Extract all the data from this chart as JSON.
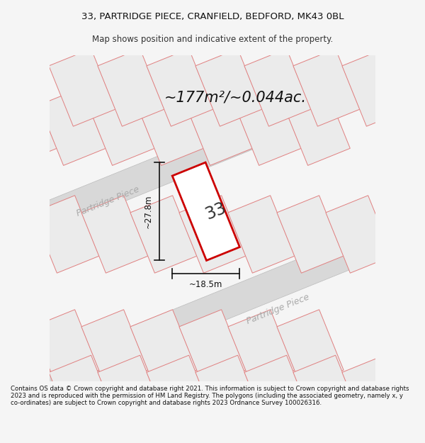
{
  "title_line1": "33, PARTRIDGE PIECE, CRANFIELD, BEDFORD, MK43 0BL",
  "title_line2": "Map shows position and indicative extent of the property.",
  "footer": "Contains OS data © Crown copyright and database right 2021. This information is subject to Crown copyright and database rights 2023 and is reproduced with the permission of HM Land Registry. The polygons (including the associated geometry, namely x, y co-ordinates) are subject to Crown copyright and database rights 2023 Ordnance Survey 100026316.",
  "area_text": "~177m²/~0.044ac.",
  "dim_vertical": "~27.8m",
  "dim_horizontal": "~18.5m",
  "road_label1": "Partridge Piece",
  "road_label2": "Partridge Piece",
  "property_number": "33",
  "bg_color": "#f5f5f5",
  "map_bg": "#fafafa",
  "parcel_fill": "#ebebeb",
  "parcel_edge": "#e08080",
  "road_fill": "#d8d8d8",
  "road_edge": "#bbbbbb",
  "property_edge": "#cc0000",
  "property_fill": "#ffffff",
  "dim_color": "#111111",
  "road_label_color": "#aaaaaa"
}
